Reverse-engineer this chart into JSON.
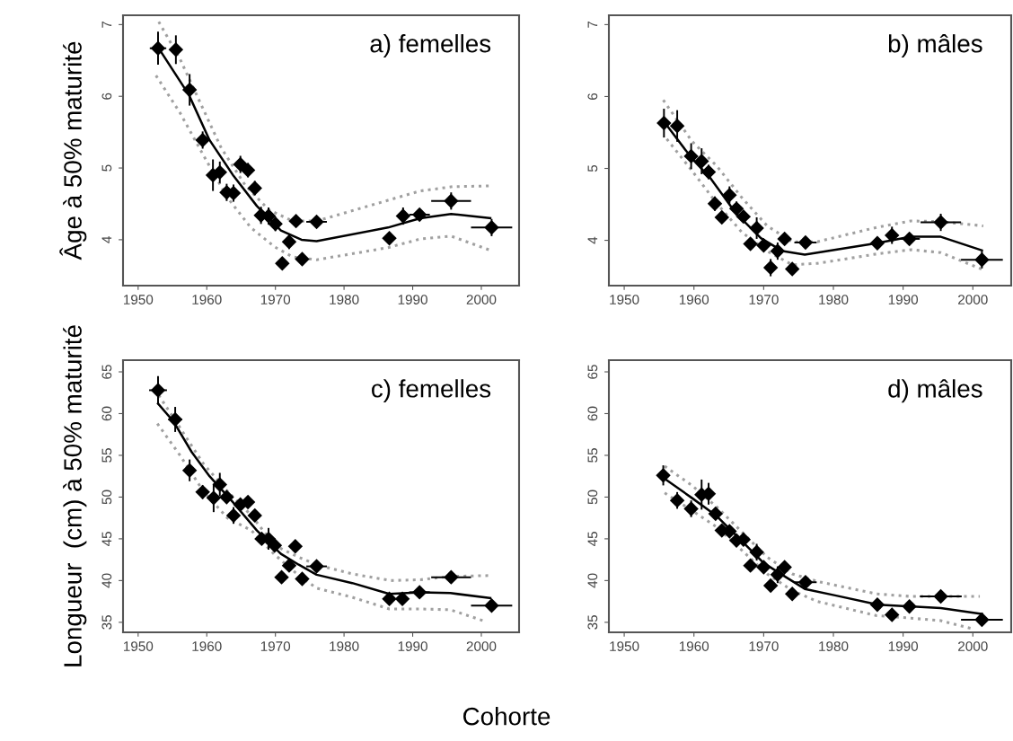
{
  "chart_data": [
    {
      "type": "scatter",
      "ylabel": "Âge à 50% maturité",
      "annotations": [
        "a) femelles"
      ],
      "xlim": [
        1947.8,
        2005.5
      ],
      "ylim": [
        3.36,
        7.13
      ],
      "xticks": [
        1950,
        1960,
        1970,
        1980,
        1990,
        2000
      ],
      "yticks": [
        4,
        5,
        6,
        7
      ],
      "grid": false,
      "series": [
        {
          "color": "#000000",
          "marker": "diamond",
          "x": [
            1952.9,
            1955.5,
            1957.5,
            1959.4,
            1960.9,
            1961.9,
            1962.9,
            1963.9,
            1964.9,
            1966.0,
            1967.0,
            1967.9,
            1969.0,
            1970.0,
            1971.0,
            1972.0,
            1973.0,
            1973.9,
            1976.0,
            1986.6,
            1988.6,
            1991.0,
            1995.6,
            2001.5
          ],
          "values": [
            6.67,
            6.65,
            6.09,
            5.39,
            4.9,
            4.94,
            4.66,
            4.65,
            5.05,
            4.97,
            4.72,
            4.34,
            4.33,
            4.22,
            3.67,
            3.97,
            4.26,
            3.73,
            4.25,
            4.02,
            4.33,
            4.35,
            4.54,
            4.17
          ],
          "errors": [
            0.23,
            0.2,
            0.22,
            0.12,
            0.22,
            0.15,
            0.12,
            0.12,
            0.12,
            0.1,
            0.1,
            0.12,
            0.12,
            0.1,
            0.08,
            0.1,
            0.08,
            0.06,
            0.06,
            0.08,
            0.12,
            0.08,
            0.12,
            0.12
          ],
          "xerrors": [
            1.2,
            null,
            null,
            null,
            null,
            null,
            null,
            null,
            null,
            null,
            null,
            null,
            null,
            null,
            null,
            null,
            null,
            null,
            1.5,
            null,
            null,
            1.5,
            2.9,
            3.0
          ]
        },
        {
          "type": "line",
          "color": "#000000",
          "line_style": "solid",
          "x": [
            1953.2,
            1957.4,
            1960.4,
            1963.9,
            1967.3,
            1970.8,
            1973.8,
            1976.0,
            1986.4,
            1991.1,
            1995.6,
            2001.3
          ],
          "values": [
            6.64,
            6.02,
            5.39,
            4.89,
            4.47,
            4.13,
            4.0,
            3.98,
            4.17,
            4.3,
            4.36,
            4.3
          ]
        },
        {
          "type": "line",
          "color": "#a0a0a0",
          "line_style": "dotted",
          "x": [
            1953.0,
            1956.1,
            1959.1,
            1962.1,
            1965.6,
            1969.0,
            1972.5,
            1976.0,
            1986.4,
            1991.1,
            1995.8,
            2001.1
          ],
          "values": [
            7.04,
            6.52,
            5.9,
            5.28,
            4.76,
            4.42,
            4.26,
            4.26,
            4.55,
            4.68,
            4.74,
            4.75
          ]
        },
        {
          "type": "line",
          "color": "#a0a0a0",
          "line_style": "dotted",
          "x": [
            1952.6,
            1956.1,
            1959.5,
            1963.0,
            1966.4,
            1969.9,
            1972.5,
            1976.0,
            1986.4,
            1991.1,
            1995.6,
            2001.1
          ],
          "values": [
            6.29,
            5.77,
            5.18,
            4.59,
            4.17,
            3.9,
            3.76,
            3.72,
            3.89,
            4.01,
            4.05,
            3.86
          ]
        }
      ]
    },
    {
      "type": "scatter",
      "annotations": [
        "b) mâles"
      ],
      "xlim": [
        1947.8,
        2005.5
      ],
      "ylim": [
        3.37,
        7.13
      ],
      "xticks": [
        1950,
        1960,
        1970,
        1980,
        1990,
        2000
      ],
      "yticks": [
        4,
        5,
        6,
        7
      ],
      "grid": false,
      "series": [
        {
          "color": "#000000",
          "marker": "diamond",
          "x": [
            1955.7,
            1957.6,
            1959.6,
            1961.1,
            1962.1,
            1963.0,
            1964.0,
            1965.1,
            1966.1,
            1967.1,
            1968.1,
            1969.0,
            1970.0,
            1971.0,
            1972.0,
            1973.0,
            1974.1,
            1976.0,
            1986.3,
            1988.4,
            1990.9,
            1995.4,
            2001.3
          ],
          "values": [
            5.63,
            5.59,
            5.17,
            5.1,
            4.95,
            4.51,
            4.32,
            4.63,
            4.44,
            4.33,
            3.95,
            4.17,
            3.93,
            3.62,
            3.85,
            4.02,
            3.6,
            3.97,
            3.96,
            4.07,
            4.02,
            4.25,
            3.73
          ],
          "errors": [
            0.2,
            0.22,
            0.18,
            0.18,
            0.1,
            0.1,
            0.08,
            0.12,
            0.1,
            0.08,
            0.06,
            0.15,
            0.08,
            0.12,
            0.12,
            0.06,
            0.05,
            0.05,
            0.08,
            0.12,
            0.08,
            0.12,
            0.12
          ],
          "xerrors": [
            null,
            null,
            null,
            null,
            null,
            null,
            null,
            null,
            null,
            null,
            null,
            null,
            null,
            null,
            null,
            null,
            null,
            1.6,
            null,
            null,
            1.5,
            2.9,
            3.0
          ]
        },
        {
          "type": "line",
          "color": "#000000",
          "line_style": "solid",
          "x": [
            1956.1,
            1959.7,
            1962.4,
            1966.0,
            1969.6,
            1972.7,
            1975.9,
            1986.2,
            1991.1,
            1995.4,
            2001.3
          ],
          "values": [
            5.6,
            5.14,
            4.86,
            4.38,
            4.03,
            3.85,
            3.8,
            3.96,
            4.05,
            4.05,
            3.86
          ]
        },
        {
          "type": "line",
          "color": "#a0a0a0",
          "line_style": "dotted",
          "x": [
            1955.6,
            1959.7,
            1963.3,
            1966.9,
            1970.5,
            1974.1,
            1977.7,
            1986.2,
            1991.1,
            1995.4,
            2001.5
          ],
          "values": [
            5.95,
            5.38,
            5.03,
            4.59,
            4.2,
            3.98,
            3.98,
            4.18,
            4.27,
            4.26,
            4.2
          ]
        },
        {
          "type": "line",
          "color": "#a0a0a0",
          "line_style": "dotted",
          "x": [
            1956.1,
            1959.7,
            1963.3,
            1966.9,
            1970.5,
            1974.1,
            1977.7,
            1986.2,
            1991.1,
            1995.4,
            2001.5
          ],
          "values": [
            5.41,
            4.97,
            4.51,
            4.11,
            3.85,
            3.66,
            3.68,
            3.81,
            3.87,
            3.83,
            3.59
          ]
        }
      ]
    },
    {
      "type": "scatter",
      "ylabel": "Longueur  (cm) à 50% maturité",
      "xlabel": "Cohorte",
      "annotations": [
        "c) femelles"
      ],
      "xlim": [
        1947.8,
        2005.5
      ],
      "ylim": [
        33.8,
        66.4
      ],
      "xticks": [
        1950,
        1960,
        1970,
        1980,
        1990,
        2000
      ],
      "yticks": [
        35,
        40,
        45,
        50,
        55,
        60,
        65
      ],
      "grid": false,
      "series": [
        {
          "color": "#000000",
          "marker": "diamond",
          "x": [
            1952.9,
            1955.4,
            1957.5,
            1959.4,
            1961.0,
            1961.9,
            1962.9,
            1963.9,
            1964.9,
            1966.0,
            1967.0,
            1968.0,
            1969.0,
            1969.9,
            1970.9,
            1972.0,
            1972.9,
            1973.9,
            1976.0,
            1986.6,
            1988.5,
            1991.0,
            1995.6,
            2001.5
          ],
          "values": [
            62.8,
            59.3,
            53.2,
            50.6,
            49.9,
            51.5,
            50.0,
            47.8,
            49.1,
            49.4,
            47.8,
            45.0,
            45.0,
            44.2,
            40.4,
            41.8,
            44.1,
            40.2,
            41.7,
            37.8,
            37.8,
            38.6,
            40.4,
            37.0
          ],
          "errors": [
            1.7,
            1.5,
            1.3,
            0.8,
            1.7,
            1.4,
            0.6,
            1.0,
            0.6,
            0.6,
            0.6,
            0.6,
            1.3,
            0.6,
            0.5,
            0.6,
            0.5,
            0.4,
            0.4,
            0.5,
            0.4,
            0.4,
            0.4,
            0.6
          ],
          "xerrors": [
            1.3,
            1.0,
            null,
            null,
            null,
            null,
            null,
            null,
            null,
            null,
            null,
            null,
            null,
            null,
            null,
            null,
            null,
            null,
            1.5,
            null,
            null,
            1.5,
            2.9,
            3.0
          ]
        },
        {
          "type": "line",
          "color": "#000000",
          "line_style": "solid",
          "x": [
            1952.9,
            1955.2,
            1957.8,
            1960.4,
            1963.9,
            1967.3,
            1970.8,
            1973.4,
            1976.0,
            1981.2,
            1986.6,
            1991.1,
            1995.5,
            2001.3
          ],
          "values": [
            61.2,
            59.0,
            55.4,
            52.5,
            49.3,
            46.0,
            43.2,
            41.9,
            40.7,
            39.7,
            38.4,
            38.6,
            38.5,
            37.9
          ]
        },
        {
          "type": "line",
          "color": "#a0a0a0",
          "line_style": "dotted",
          "x": [
            1953.0,
            1956.1,
            1959.5,
            1963.0,
            1966.5,
            1969.9,
            1973.4,
            1976.0,
            1981.2,
            1986.8,
            1991.1,
            1995.5,
            2001.3
          ],
          "values": [
            62.2,
            58.3,
            54.0,
            50.7,
            47.8,
            44.2,
            42.8,
            41.9,
            40.8,
            40.0,
            40.1,
            40.5,
            40.6
          ]
        },
        {
          "type": "line",
          "color": "#a0a0a0",
          "line_style": "dotted",
          "x": [
            1952.8,
            1956.1,
            1959.5,
            1963.0,
            1966.5,
            1969.9,
            1973.4,
            1976.0,
            1981.2,
            1986.6,
            1991.1,
            1995.5,
            2000.6
          ],
          "values": [
            58.8,
            55.0,
            50.7,
            47.5,
            46.0,
            43.1,
            40.6,
            39.1,
            38.0,
            36.6,
            36.6,
            36.5,
            35.1
          ]
        }
      ]
    },
    {
      "type": "scatter",
      "annotations": [
        "d) mâles"
      ],
      "xlim": [
        1947.8,
        2005.5
      ],
      "ylim": [
        33.8,
        66.4
      ],
      "xticks": [
        1950,
        1960,
        1970,
        1980,
        1990,
        2000
      ],
      "yticks": [
        35,
        40,
        45,
        50,
        55,
        60,
        65
      ],
      "grid": false,
      "series": [
        {
          "color": "#000000",
          "marker": "diamond",
          "x": [
            1955.6,
            1957.6,
            1959.6,
            1961.1,
            1962.1,
            1963.1,
            1964.0,
            1965.1,
            1966.1,
            1967.1,
            1968.1,
            1969.0,
            1970.0,
            1971.0,
            1972.0,
            1973.0,
            1974.1,
            1976.0,
            1986.3,
            1988.4,
            1990.9,
            1995.4,
            2001.3
          ],
          "values": [
            52.6,
            49.6,
            48.6,
            50.3,
            50.4,
            48.0,
            46.0,
            45.9,
            44.8,
            44.9,
            41.8,
            43.4,
            41.6,
            39.4,
            40.7,
            41.6,
            38.4,
            39.8,
            37.1,
            35.9,
            36.9,
            38.1,
            35.3
          ],
          "errors": [
            1.2,
            1.0,
            1.0,
            1.8,
            1.3,
            0.5,
            0.5,
            0.5,
            0.5,
            0.5,
            0.4,
            1.0,
            0.5,
            0.5,
            1.0,
            0.5,
            0.4,
            0.4,
            0.4,
            0.4,
            0.4,
            0.6,
            0.6
          ],
          "xerrors": [
            null,
            null,
            null,
            null,
            null,
            null,
            null,
            null,
            null,
            null,
            null,
            null,
            null,
            null,
            null,
            null,
            null,
            1.6,
            null,
            null,
            null,
            3.0,
            3.0
          ]
        },
        {
          "type": "line",
          "color": "#000000",
          "line_style": "solid",
          "x": [
            1955.8,
            1959.7,
            1963.3,
            1966.9,
            1970.0,
            1973.2,
            1975.9,
            1980.4,
            1986.4,
            1991.1,
            1995.4,
            2001.3
          ],
          "values": [
            52.2,
            49.9,
            47.7,
            44.7,
            42.1,
            40.4,
            39.0,
            38.2,
            37.1,
            36.9,
            36.7,
            36.0
          ]
        },
        {
          "type": "line",
          "color": "#a0a0a0",
          "line_style": "dotted",
          "x": [
            1955.8,
            1959.7,
            1963.3,
            1966.9,
            1970.5,
            1974.1,
            1977.7,
            1986.2,
            1991.1,
            1995.4,
            2001.0
          ],
          "values": [
            53.7,
            51.4,
            48.8,
            45.8,
            42.8,
            40.8,
            39.9,
            38.4,
            38.1,
            38.1,
            38.1
          ]
        },
        {
          "type": "line",
          "color": "#a0a0a0",
          "line_style": "dotted",
          "x": [
            1955.8,
            1959.7,
            1963.3,
            1966.9,
            1970.5,
            1974.1,
            1977.7,
            1986.2,
            1991.1,
            1995.4,
            2000.1
          ],
          "values": [
            50.5,
            48.4,
            46.4,
            43.6,
            40.8,
            38.8,
            37.5,
            35.8,
            35.5,
            35.2,
            34.2
          ]
        }
      ]
    }
  ]
}
